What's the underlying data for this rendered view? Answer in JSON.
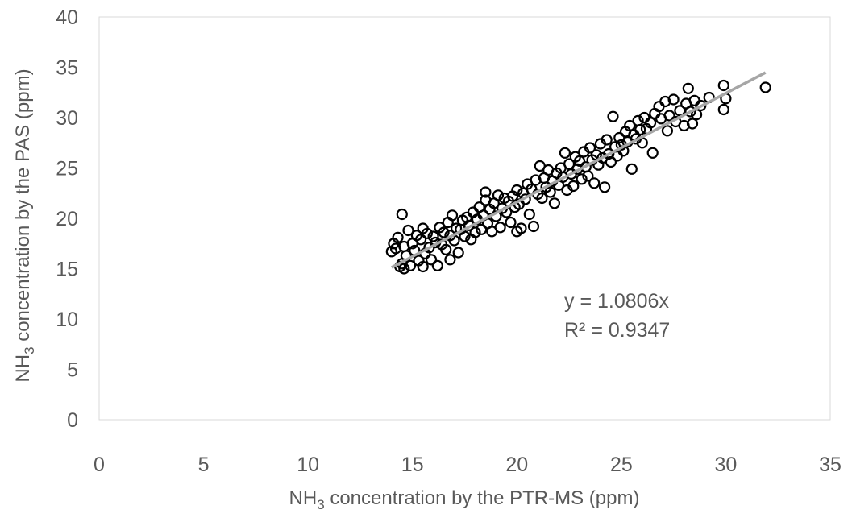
{
  "chart_data": {
    "type": "scatter",
    "xlabel": {
      "pre": "NH",
      "sub": "3",
      "post": " concentration by the PTR-MS (ppm)"
    },
    "ylabel": {
      "pre": "NH",
      "sub": "3",
      "post": " concentration by the PAS (ppm)"
    },
    "xlim": [
      0,
      35
    ],
    "ylim": [
      0,
      40
    ],
    "xticks": [
      "0",
      "5",
      "10",
      "15",
      "20",
      "25",
      "30",
      "35"
    ],
    "yticks": [
      "0",
      "5",
      "10",
      "15",
      "20",
      "25",
      "30",
      "35",
      "40"
    ],
    "grid": false,
    "legend": "none",
    "trendline": {
      "slope": 1.0806,
      "intercept": 0,
      "x_range": [
        14,
        31.9
      ],
      "equation": "y = 1.0806x",
      "r2_text": "R² = 0.9347",
      "color": "#a6a6a6"
    },
    "marker": {
      "shape": "open-circle",
      "color": "#000000"
    },
    "points": [
      [
        14.0,
        16.7
      ],
      [
        14.1,
        17.5
      ],
      [
        14.2,
        17.0
      ],
      [
        14.3,
        18.1
      ],
      [
        14.4,
        15.2
      ],
      [
        14.5,
        15.5
      ],
      [
        14.5,
        20.4
      ],
      [
        14.6,
        15.0
      ],
      [
        14.6,
        17.2
      ],
      [
        14.7,
        16.3
      ],
      [
        14.8,
        18.8
      ],
      [
        14.9,
        15.3
      ],
      [
        15.0,
        17.5
      ],
      [
        15.1,
        16.8
      ],
      [
        15.2,
        18.3
      ],
      [
        15.3,
        15.8
      ],
      [
        15.4,
        17.9
      ],
      [
        15.5,
        15.2
      ],
      [
        15.5,
        19.0
      ],
      [
        15.6,
        16.5
      ],
      [
        15.7,
        18.5
      ],
      [
        15.8,
        17.1
      ],
      [
        15.9,
        15.9
      ],
      [
        16.0,
        18.2
      ],
      [
        16.1,
        17.6
      ],
      [
        16.2,
        15.3
      ],
      [
        16.3,
        19.1
      ],
      [
        16.4,
        17.4
      ],
      [
        16.5,
        18.6
      ],
      [
        16.6,
        16.9
      ],
      [
        16.7,
        19.6
      ],
      [
        16.8,
        15.9
      ],
      [
        16.8,
        18.3
      ],
      [
        16.9,
        20.3
      ],
      [
        17.0,
        17.8
      ],
      [
        17.1,
        19.0
      ],
      [
        17.2,
        16.6
      ],
      [
        17.3,
        18.9
      ],
      [
        17.4,
        19.8
      ],
      [
        17.5,
        18.2
      ],
      [
        17.6,
        20.1
      ],
      [
        17.7,
        19.3
      ],
      [
        17.8,
        17.9
      ],
      [
        17.9,
        20.6
      ],
      [
        18.0,
        18.6
      ],
      [
        18.1,
        19.9
      ],
      [
        18.2,
        21.1
      ],
      [
        18.3,
        18.9
      ],
      [
        18.4,
        20.3
      ],
      [
        18.5,
        21.8
      ],
      [
        18.5,
        22.6
      ],
      [
        18.6,
        19.5
      ],
      [
        18.7,
        20.9
      ],
      [
        18.8,
        18.7
      ],
      [
        18.9,
        21.5
      ],
      [
        19.0,
        20.2
      ],
      [
        19.1,
        22.3
      ],
      [
        19.2,
        19.1
      ],
      [
        19.3,
        21.0
      ],
      [
        19.4,
        22.0
      ],
      [
        19.5,
        20.6
      ],
      [
        19.6,
        21.7
      ],
      [
        19.7,
        19.6
      ],
      [
        19.8,
        22.2
      ],
      [
        19.9,
        21.1
      ],
      [
        20.0,
        18.7
      ],
      [
        20.0,
        22.8
      ],
      [
        20.1,
        21.4
      ],
      [
        20.2,
        19.0
      ],
      [
        20.3,
        22.5
      ],
      [
        20.4,
        21.9
      ],
      [
        20.5,
        23.4
      ],
      [
        20.6,
        20.4
      ],
      [
        20.7,
        22.9
      ],
      [
        20.8,
        19.2
      ],
      [
        20.9,
        23.8
      ],
      [
        21.0,
        22.4
      ],
      [
        21.1,
        25.2
      ],
      [
        21.2,
        22.0
      ],
      [
        21.3,
        24.0
      ],
      [
        21.4,
        23.1
      ],
      [
        21.5,
        24.8
      ],
      [
        21.6,
        22.6
      ],
      [
        21.7,
        23.7
      ],
      [
        21.8,
        21.5
      ],
      [
        21.9,
        24.5
      ],
      [
        22.0,
        23.3
      ],
      [
        22.1,
        25.0
      ],
      [
        22.2,
        24.1
      ],
      [
        22.3,
        26.5
      ],
      [
        22.4,
        22.8
      ],
      [
        22.5,
        25.4
      ],
      [
        22.6,
        24.4
      ],
      [
        22.7,
        23.2
      ],
      [
        22.8,
        26.1
      ],
      [
        22.9,
        24.9
      ],
      [
        23.0,
        25.7
      ],
      [
        23.1,
        23.9
      ],
      [
        23.2,
        26.6
      ],
      [
        23.3,
        25.1
      ],
      [
        23.4,
        24.2
      ],
      [
        23.5,
        27.0
      ],
      [
        23.6,
        25.8
      ],
      [
        23.7,
        23.5
      ],
      [
        23.8,
        26.3
      ],
      [
        23.9,
        25.3
      ],
      [
        24.0,
        27.4
      ],
      [
        24.1,
        26.0
      ],
      [
        24.2,
        23.1
      ],
      [
        24.3,
        27.8
      ],
      [
        24.4,
        26.4
      ],
      [
        24.5,
        25.6
      ],
      [
        24.6,
        30.1
      ],
      [
        24.7,
        27.1
      ],
      [
        24.8,
        26.2
      ],
      [
        24.9,
        28.0
      ],
      [
        25.0,
        27.3
      ],
      [
        25.1,
        26.7
      ],
      [
        25.2,
        28.6
      ],
      [
        25.3,
        27.6
      ],
      [
        25.4,
        29.2
      ],
      [
        25.5,
        24.9
      ],
      [
        25.6,
        28.3
      ],
      [
        25.7,
        27.9
      ],
      [
        25.8,
        29.7
      ],
      [
        25.9,
        28.8
      ],
      [
        26.0,
        27.5
      ],
      [
        26.1,
        30.0
      ],
      [
        26.2,
        28.9
      ],
      [
        26.4,
        29.5
      ],
      [
        26.5,
        26.5
      ],
      [
        26.6,
        30.4
      ],
      [
        26.8,
        31.1
      ],
      [
        26.9,
        29.9
      ],
      [
        27.1,
        31.6
      ],
      [
        27.2,
        28.7
      ],
      [
        27.3,
        30.2
      ],
      [
        27.5,
        31.8
      ],
      [
        27.6,
        29.6
      ],
      [
        27.8,
        30.7
      ],
      [
        28.0,
        29.2
      ],
      [
        28.1,
        31.4
      ],
      [
        28.2,
        32.9
      ],
      [
        28.3,
        30.6
      ],
      [
        28.4,
        29.4
      ],
      [
        28.5,
        31.7
      ],
      [
        28.6,
        30.3
      ],
      [
        28.8,
        31.2
      ],
      [
        29.2,
        32.0
      ],
      [
        29.9,
        33.2
      ],
      [
        29.9,
        30.8
      ],
      [
        30.0,
        31.9
      ],
      [
        31.9,
        33.0
      ]
    ]
  }
}
